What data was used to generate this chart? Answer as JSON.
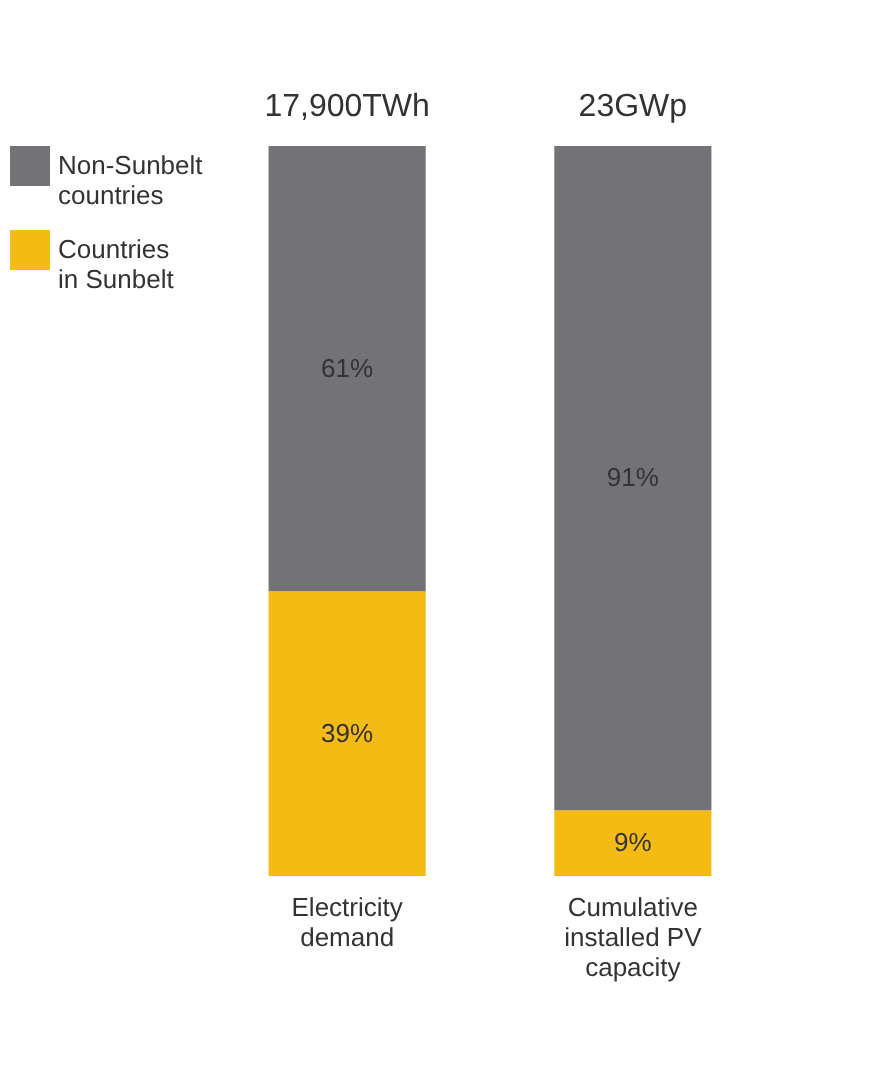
{
  "chart_data": {
    "type": "bar",
    "stacked": true,
    "categories": [
      "Electricity demand",
      "Cumulative installed PV capacity"
    ],
    "series": [
      {
        "name": "Countries in Sunbelt",
        "color": "#f5bb15",
        "values": [
          39,
          9
        ],
        "value_labels": [
          "39%",
          "9%"
        ]
      },
      {
        "name": "Non-Sunbelt countries",
        "color": "#737377",
        "values": [
          61,
          91
        ],
        "value_labels": [
          "61%",
          "91%"
        ]
      }
    ],
    "annotations": [
      {
        "text": "17,900TWh",
        "x": "Electricity demand",
        "y": 100
      },
      {
        "text": "23GWp",
        "x": "Cumulative installed PV capacity",
        "y": 100
      }
    ],
    "ylim": [
      0,
      100
    ],
    "tick_labels": "x",
    "legend": "top left"
  }
}
